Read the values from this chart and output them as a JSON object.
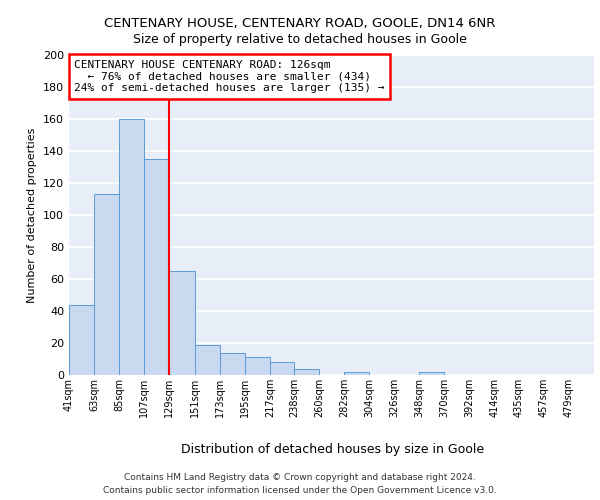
{
  "title1": "CENTENARY HOUSE, CENTENARY ROAD, GOOLE, DN14 6NR",
  "title2": "Size of property relative to detached houses in Goole",
  "xlabel": "Distribution of detached houses by size in Goole",
  "ylabel": "Number of detached properties",
  "bins": [
    41,
    63,
    85,
    107,
    129,
    151,
    173,
    195,
    217,
    238,
    260,
    282,
    304,
    326,
    348,
    370,
    392,
    414,
    435,
    457,
    479
  ],
  "bar_heights": [
    44,
    113,
    160,
    135,
    65,
    19,
    14,
    11,
    8,
    4,
    0,
    2,
    0,
    0,
    2,
    0,
    0,
    0,
    0,
    0
  ],
  "bar_color": "#c9d9f0",
  "bar_edge_color": "#5b9bd5",
  "red_line_x": 129,
  "ylim": [
    0,
    200
  ],
  "yticks": [
    0,
    20,
    40,
    60,
    80,
    100,
    120,
    140,
    160,
    180,
    200
  ],
  "background_color": "#e8eef7",
  "grid_color": "#ffffff",
  "annotation_title": "CENTENARY HOUSE CENTENARY ROAD: 126sqm",
  "annotation_line1": "  ← 76% of detached houses are smaller (434)",
  "annotation_line2": "24% of semi-detached houses are larger (135) →",
  "footer1": "Contains HM Land Registry data © Crown copyright and database right 2024.",
  "footer2": "Contains public sector information licensed under the Open Government Licence v3.0.",
  "title1_fontsize": 9.5,
  "title2_fontsize": 9,
  "tick_labels": [
    "41sqm",
    "63sqm",
    "85sqm",
    "107sqm",
    "129sqm",
    "151sqm",
    "173sqm",
    "195sqm",
    "217sqm",
    "238sqm",
    "260sqm",
    "282sqm",
    "304sqm",
    "326sqm",
    "348sqm",
    "370sqm",
    "392sqm",
    "414sqm",
    "435sqm",
    "457sqm",
    "479sqm"
  ]
}
